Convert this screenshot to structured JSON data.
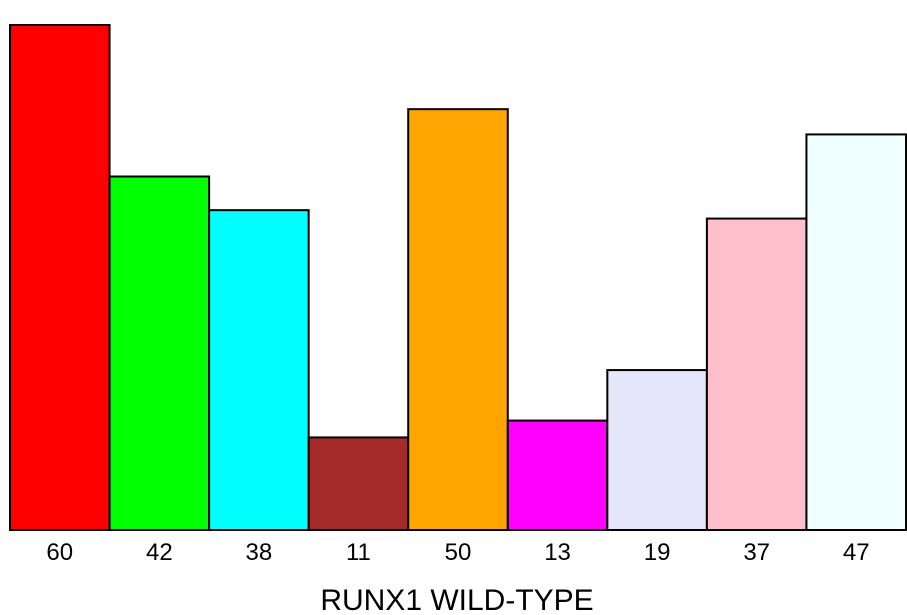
{
  "chart_data": {
    "type": "bar",
    "categories": [
      "60",
      "42",
      "38",
      "11",
      "50",
      "13",
      "19",
      "37",
      "47"
    ],
    "values": [
      60,
      42,
      38,
      11,
      50,
      13,
      19,
      37,
      47
    ],
    "colors": [
      "#ff0000",
      "#00ff00",
      "#00ffff",
      "#a52a2a",
      "#ffa500",
      "#ff00ff",
      "#e6e6fa",
      "#ffc0cb",
      "#f0ffff"
    ],
    "bar_edge_color": "#000000",
    "xlabel": "RUNX1 WILD-TYPE",
    "ylim": [
      0,
      60
    ],
    "grid": false,
    "legend": "none"
  }
}
